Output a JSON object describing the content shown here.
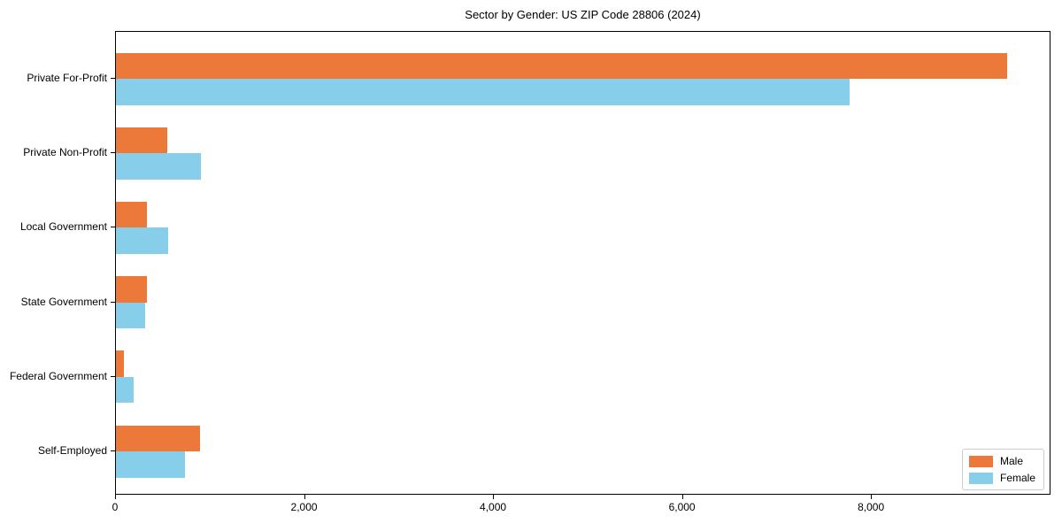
{
  "title": "Sector by Gender: US ZIP Code 28806 (2024)",
  "chart_data": {
    "type": "bar",
    "orientation": "horizontal",
    "title": "Sector by Gender: US ZIP Code 28806 (2024)",
    "categories": [
      "Private For-Profit",
      "Private Non-Profit",
      "Local Government",
      "State Government",
      "Federal Government",
      "Self-Employed"
    ],
    "series": [
      {
        "name": "Male",
        "color": "#ec7839",
        "values": [
          9430,
          545,
          325,
          330,
          85,
          890
        ]
      },
      {
        "name": "Female",
        "color": "#87ceeb",
        "values": [
          7760,
          900,
          550,
          305,
          190,
          730
        ]
      }
    ],
    "xlabel": "",
    "ylabel": "",
    "xlim": [
      0,
      9900
    ],
    "xticks": [
      0,
      2000,
      4000,
      6000,
      8000
    ],
    "xtick_labels": [
      "0",
      "2,000",
      "4,000",
      "6,000",
      "8,000"
    ],
    "grid": false,
    "legend_position": "lower right"
  },
  "legend": {
    "items": [
      {
        "label": "Male",
        "color": "#ec7839"
      },
      {
        "label": "Female",
        "color": "#87ceeb"
      }
    ]
  }
}
